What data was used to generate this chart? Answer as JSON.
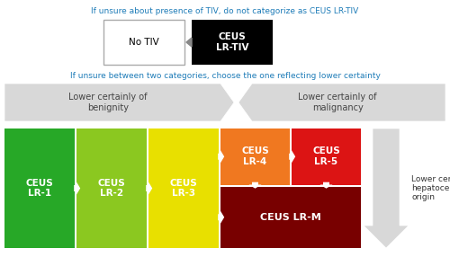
{
  "top_text": "If unsure about presence of TIV, do not categorize as CEUS LR-TIV",
  "middle_text": "If unsure between two categories, choose the one reflecting lower certainty",
  "arrow_left_text": "Lower certainly of\nbenignity",
  "arrow_right_text": "Lower certainly of\nmalignancy",
  "right_label_text": "Lower certainly of\nhepatocellular\norigin",
  "no_tiv_label": "No TIV",
  "ceus_lrtiv_label": "CEUS\nLR-TIV",
  "boxes": [
    {
      "label": "CEUS\nLR-1",
      "color": "#27a827",
      "text_color": "#ffffff"
    },
    {
      "label": "CEUS\nLR-2",
      "color": "#8bc820",
      "text_color": "#ffffff"
    },
    {
      "label": "CEUS\nLR-3",
      "color": "#e8e000",
      "text_color": "#ffffff"
    },
    {
      "label": "CEUS\nLR-4",
      "color": "#f07820",
      "text_color": "#ffffff"
    },
    {
      "label": "CEUS\nLR-5",
      "color": "#dc1414",
      "text_color": "#ffffff"
    },
    {
      "label": "CEUS LR-M",
      "color": "#780000",
      "text_color": "#ffffff"
    }
  ],
  "blue_color": "#1e7cb8",
  "gray_color": "#d8d8d8",
  "dark_gray_color": "#555555",
  "bg_color": "#ffffff"
}
